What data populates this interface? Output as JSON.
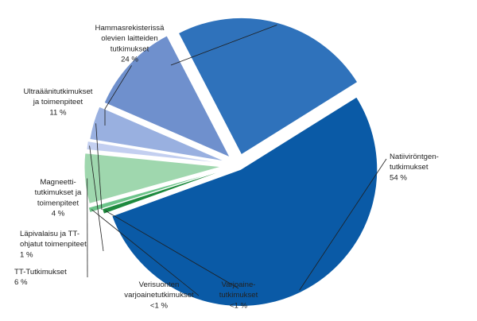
{
  "chart_data": {
    "type": "pie",
    "slices": [
      {
        "label": "Natiiviröntgen-\ntutkimukset",
        "value": 54,
        "value_label": "54 %",
        "color": "#0a5aa6"
      },
      {
        "label": "Varjoaine-\ntutkimukset",
        "value": 0.6,
        "value_label": "<1 %",
        "color": "#1e8a3e"
      },
      {
        "label": "Verisuonten\nvarjoainetutkimukset",
        "value": 0.6,
        "value_label": "<1 %",
        "color": "#6cc48a"
      },
      {
        "label": "TT-Tutkimukset",
        "value": 6,
        "value_label": "6 %",
        "color": "#9fd7ae"
      },
      {
        "label": "Läpivalaisu ja TT-\nohjatut toimenpiteet",
        "value": 1,
        "value_label": "1 %",
        "color": "#c3cff0"
      },
      {
        "label": "Magneetti-\ntutkimukset ja\ntoimenpiteet",
        "value": 4,
        "value_label": "4 %",
        "color": "#99b0e0"
      },
      {
        "label": "Ultraäänitutkimukset\nja toimenpiteet",
        "value": 11,
        "value_label": "11 %",
        "color": "#6f90cd"
      },
      {
        "label": "Hammasrekisterissä\nolevien laitteiden\ntutkimukset",
        "value": 24,
        "value_label": "24 %",
        "color": "#2f72bb"
      }
    ]
  }
}
